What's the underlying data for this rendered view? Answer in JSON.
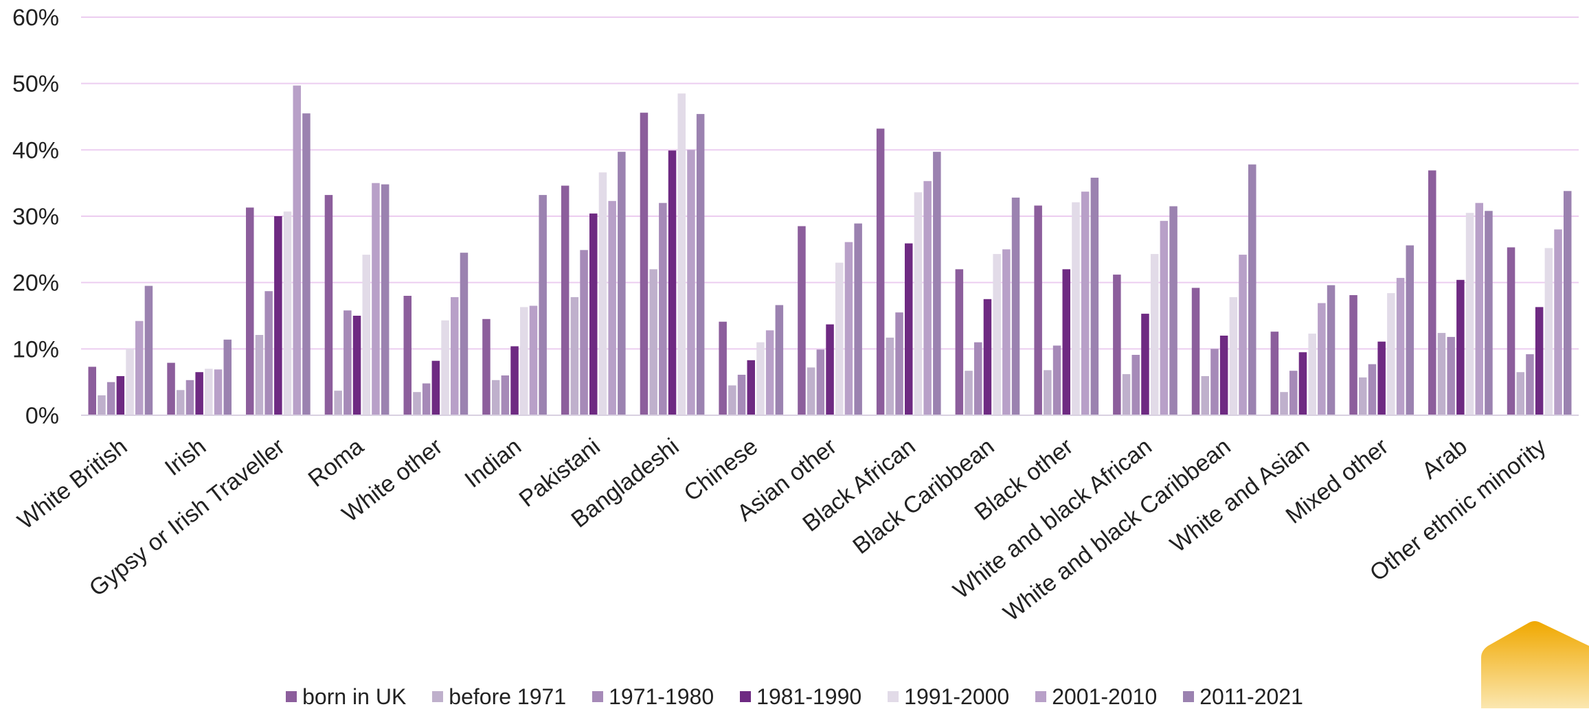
{
  "chart_data": {
    "type": "bar",
    "title": "",
    "xlabel": "",
    "ylabel": "",
    "ylim": [
      0,
      60
    ],
    "y_ticks": [
      "0%",
      "10%",
      "20%",
      "30%",
      "40%",
      "50%",
      "60%"
    ],
    "grid": true,
    "legend_position": "bottom",
    "categories": [
      "White British",
      "Irish",
      "Gypsy or Irish Traveller",
      "Roma",
      "White other",
      "Indian",
      "Pakistani",
      "Bangladeshi",
      "Chinese",
      "Asian other",
      "Black African",
      "Black Caribbean",
      "Black other",
      "White and black African",
      "White and black Caribbean",
      "White and Asian",
      "Mixed other",
      "Arab",
      "Other ethnic minority"
    ],
    "series": [
      {
        "name": "born in UK",
        "color": "#8c5e9c",
        "values": [
          7.3,
          7.9,
          31.3,
          33.2,
          18.0,
          14.5,
          34.6,
          45.6,
          14.1,
          28.5,
          43.2,
          22.0,
          31.6,
          21.2,
          19.2,
          12.6,
          18.1,
          36.9,
          25.3
        ]
      },
      {
        "name": "before 1971",
        "color": "#bfb0cc",
        "values": [
          3.0,
          3.8,
          12.1,
          3.7,
          3.5,
          5.3,
          17.8,
          22.0,
          4.5,
          7.2,
          11.7,
          6.7,
          6.8,
          6.2,
          5.9,
          3.5,
          5.7,
          12.4,
          6.5
        ]
      },
      {
        "name": "1971-1980",
        "color": "#a68ab8",
        "values": [
          5.0,
          5.3,
          18.7,
          15.8,
          4.8,
          6.0,
          24.9,
          32.0,
          6.1,
          9.9,
          15.5,
          11.0,
          10.5,
          9.1,
          10.0,
          6.7,
          7.7,
          11.8,
          9.2
        ]
      },
      {
        "name": "1981-1990",
        "color": "#6e2a82",
        "values": [
          5.9,
          6.5,
          30.0,
          15.0,
          8.2,
          10.4,
          30.4,
          39.9,
          8.3,
          13.7,
          25.9,
          17.5,
          22.0,
          15.3,
          12.0,
          9.5,
          11.1,
          20.4,
          16.3
        ]
      },
      {
        "name": "1991-2000",
        "color": "#e2dbe8",
        "values": [
          10.0,
          7.0,
          30.7,
          24.2,
          14.3,
          16.3,
          36.6,
          48.5,
          11.0,
          23.0,
          33.6,
          24.3,
          32.1,
          24.3,
          17.8,
          12.3,
          18.4,
          30.5,
          25.2
        ]
      },
      {
        "name": "2001-2010",
        "color": "#b8a0c8",
        "values": [
          14.2,
          6.9,
          49.7,
          35.0,
          17.8,
          16.5,
          32.3,
          40.0,
          12.8,
          26.1,
          35.3,
          25.0,
          33.7,
          29.3,
          24.2,
          16.9,
          20.7,
          32.0,
          28.0
        ]
      },
      {
        "name": "2011-2021",
        "color": "#9b82b0",
        "values": [
          19.5,
          11.4,
          45.5,
          34.8,
          24.5,
          33.2,
          39.7,
          45.4,
          16.6,
          28.9,
          39.7,
          32.8,
          35.8,
          31.5,
          37.8,
          19.6,
          25.6,
          30.8,
          33.8
        ]
      }
    ]
  }
}
